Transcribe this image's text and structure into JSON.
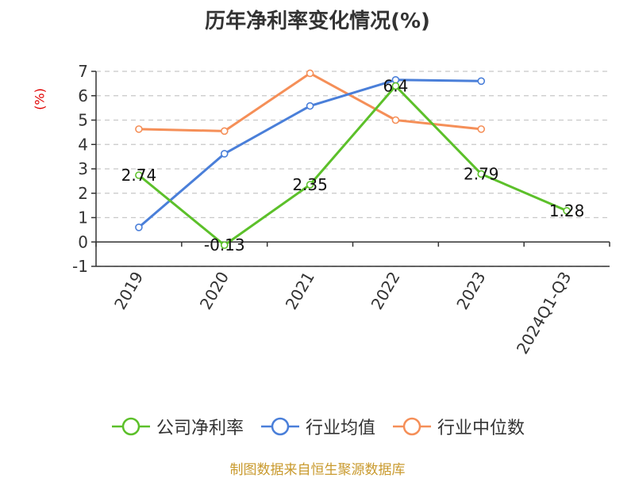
{
  "colors": {
    "title": "#333333",
    "ylabel": "#e00000",
    "source": "#c99a2e",
    "grid": "#c8c8c8",
    "axis": "#333333"
  },
  "chart_data": {
    "type": "line",
    "title": "历年净利率变化情况(%)",
    "ylabel": "(%)",
    "xlabel": "",
    "ylim": [
      -1,
      7
    ],
    "yticks": [
      -1,
      0,
      1,
      2,
      3,
      4,
      5,
      6,
      7
    ],
    "grid": true,
    "legend_position": "bottom",
    "categories": [
      "2019",
      "2020",
      "2021",
      "2022",
      "2023",
      "2024Q1-Q3"
    ],
    "series": [
      {
        "name": "公司净利率",
        "color": "#5cc02a",
        "values": [
          2.74,
          -0.13,
          2.35,
          6.4,
          2.79,
          1.28
        ],
        "labels": [
          "2.74",
          "-0.13",
          "2.35",
          "6.4",
          "2.79",
          "1.28"
        ]
      },
      {
        "name": "行业均值",
        "color": "#4a7fd9",
        "values": [
          0.6,
          3.62,
          5.58,
          6.65,
          6.6,
          null
        ]
      },
      {
        "name": "行业中位数",
        "color": "#f58f58",
        "values": [
          4.63,
          4.55,
          6.92,
          5.0,
          4.63,
          null
        ]
      }
    ]
  },
  "source": "制图数据来自恒生聚源数据库"
}
